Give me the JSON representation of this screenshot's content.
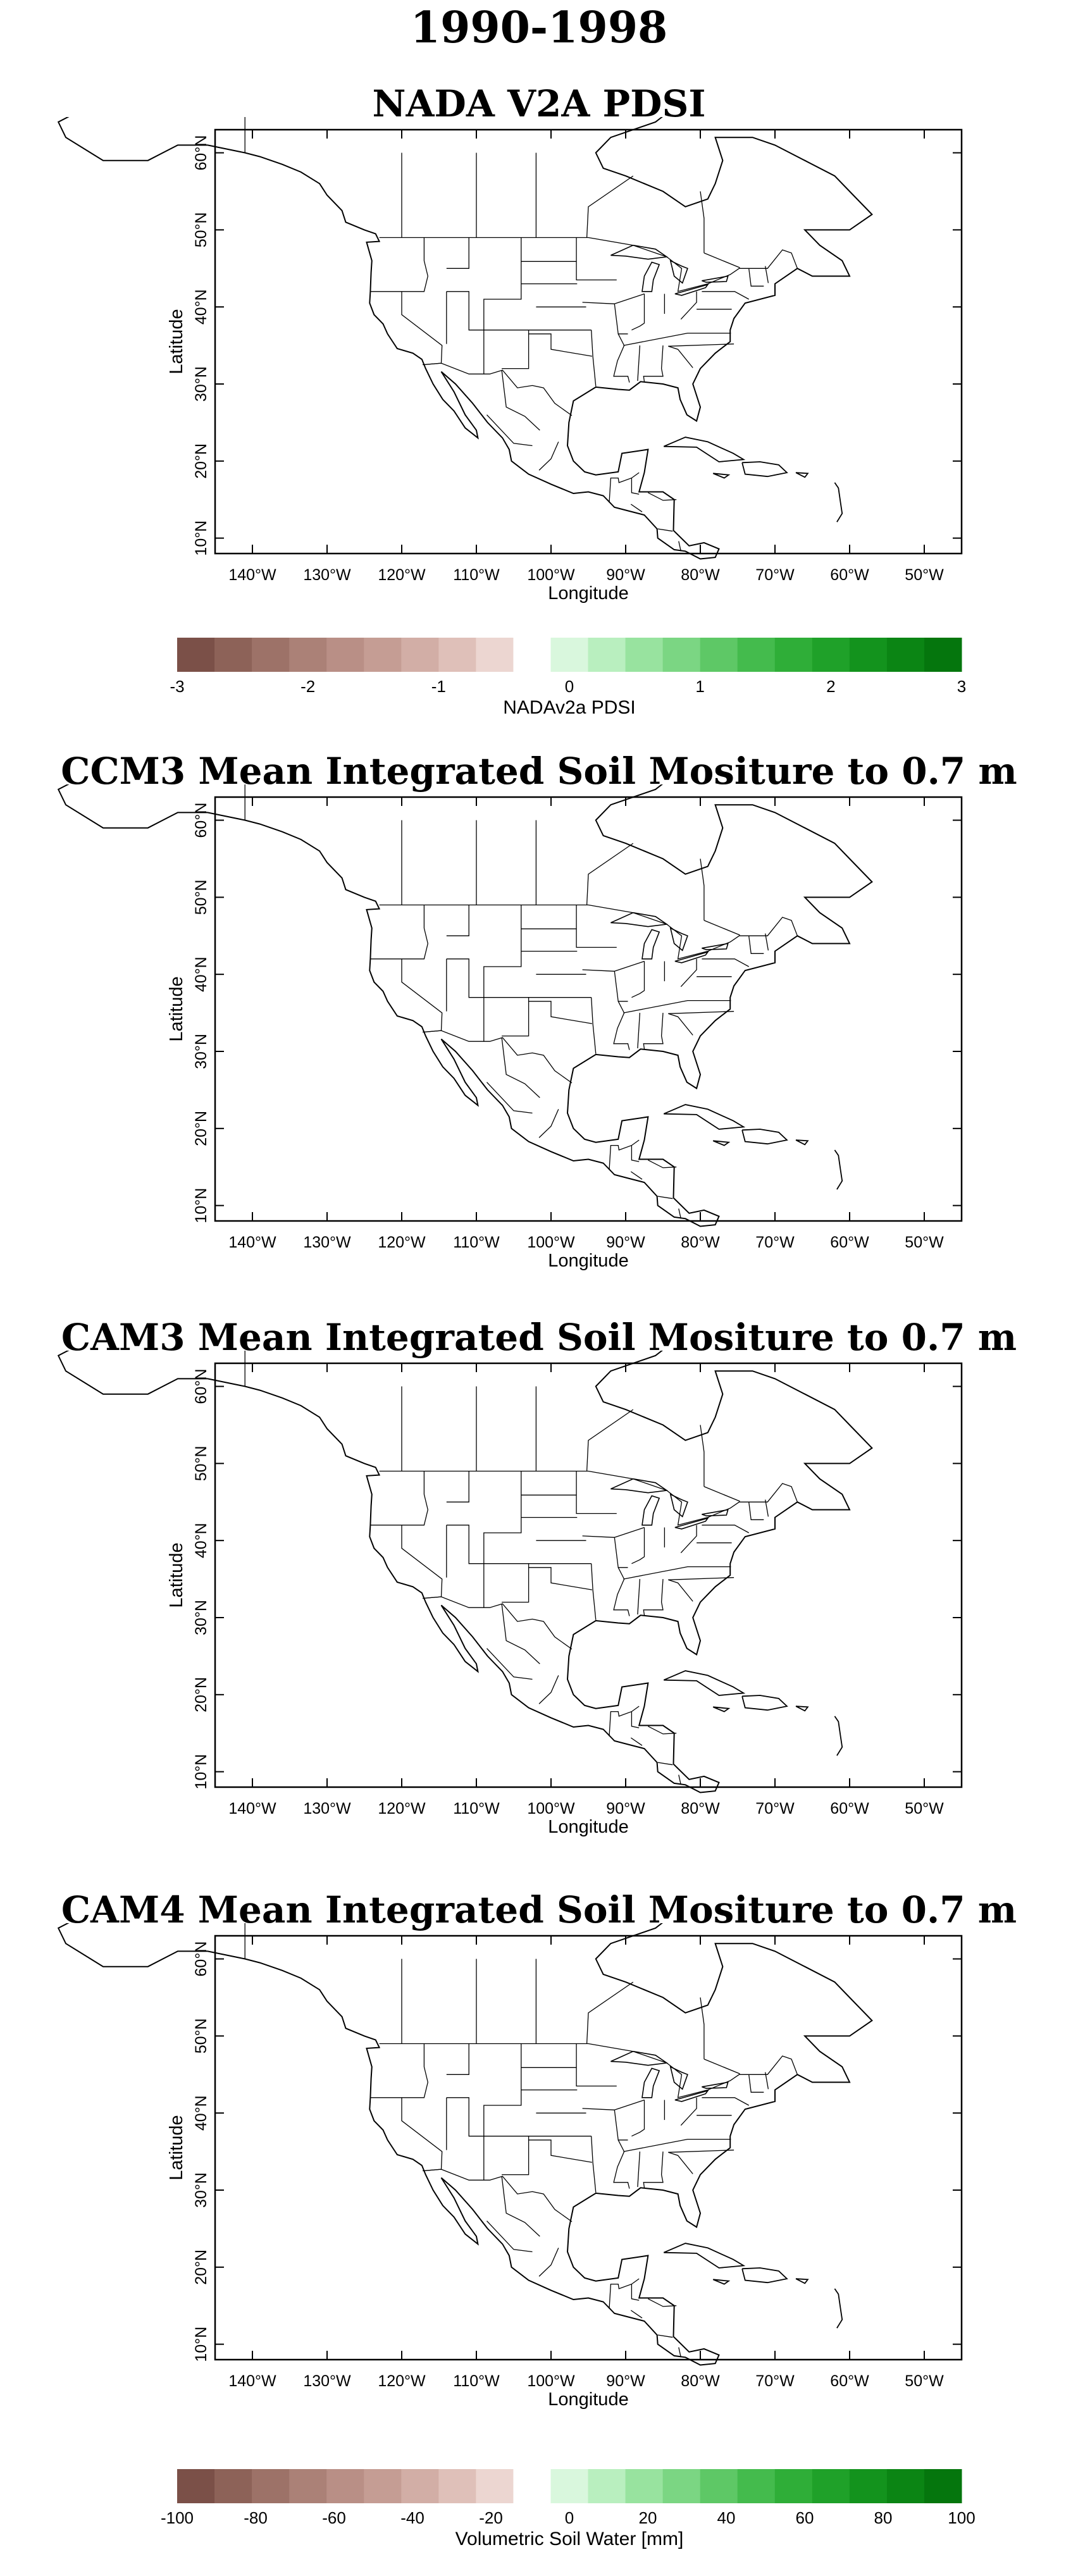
{
  "figure": {
    "title": "1990-1998",
    "longitude_ticks": [
      "140°W",
      "130°W",
      "120°W",
      "110°W",
      "100°W",
      "90°W",
      "80°W",
      "70°W",
      "60°W",
      "50°W"
    ],
    "latitude_ticks": [
      "10°N",
      "20°N",
      "30°N",
      "40°N",
      "50°N",
      "60°N"
    ],
    "xlabel": "Longitude",
    "ylabel": "Latitude"
  },
  "panels": [
    {
      "title": "NADA V2A PDSI",
      "variable": "NADAv2a PDSI"
    },
    {
      "title": "CCM3 Mean Integrated Soil Mositure to 0.7 m",
      "variable": "Volumetric Soil Water [mm]"
    },
    {
      "title": "CAM3 Mean Integrated Soil Mositure to 0.7 m",
      "variable": "Volumetric Soil Water [mm]"
    },
    {
      "title": "CAM4 Mean Integrated Soil Mositure to 0.7 m",
      "variable": "Volumetric Soil Water [mm]"
    }
  ],
  "colorbars": [
    {
      "label": "NADAv2a PDSI",
      "ticks": [
        "-3",
        "-2",
        "-1",
        "0",
        "1",
        "2",
        "3"
      ]
    },
    {
      "label": "Volumetric Soil Water [mm]",
      "ticks": [
        "-100",
        "-80",
        "-60",
        "-40",
        "-20",
        "0",
        "20",
        "40",
        "60",
        "80",
        "100"
      ]
    }
  ],
  "colors": {
    "dry": [
      "#7b5048",
      "#8d6258",
      "#9d7268",
      "#ab8177",
      "#b98f86",
      "#c59d94",
      "#d2aea6",
      "#dfc0b9",
      "#ecd6d1"
    ],
    "wet": [
      "#d9f7dd",
      "#b9efbf",
      "#98e39f",
      "#7bd683",
      "#5ec866",
      "#44bb4d",
      "#2fae38",
      "#1fa129",
      "#13931d",
      "#0b8514",
      "#05760d"
    ],
    "land_outline": "#000000"
  }
}
